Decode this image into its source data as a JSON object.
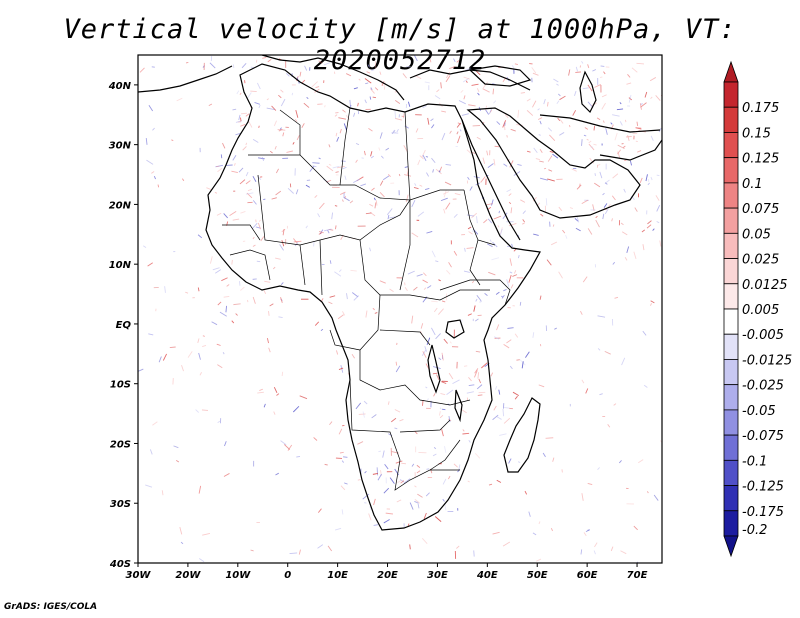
{
  "title": "Vertical velocity [m/s] at 1000hPa, VT: 2020052712",
  "credit": "GrADS: IGES/COLA",
  "map": {
    "lon_range": [
      -30,
      75
    ],
    "lat_range": [
      -40,
      45
    ],
    "lon_ticks": [
      {
        "value": -30,
        "label": "30W"
      },
      {
        "value": -20,
        "label": "20W"
      },
      {
        "value": -10,
        "label": "10W"
      },
      {
        "value": 0,
        "label": "0"
      },
      {
        "value": 10,
        "label": "10E"
      },
      {
        "value": 20,
        "label": "20E"
      },
      {
        "value": 30,
        "label": "30E"
      },
      {
        "value": 40,
        "label": "40E"
      },
      {
        "value": 50,
        "label": "50E"
      },
      {
        "value": 60,
        "label": "60E"
      },
      {
        "value": 70,
        "label": "70E"
      }
    ],
    "lat_ticks": [
      {
        "value": 40,
        "label": "40N"
      },
      {
        "value": 30,
        "label": "30N"
      },
      {
        "value": 20,
        "label": "20N"
      },
      {
        "value": 10,
        "label": "10N"
      },
      {
        "value": 0,
        "label": "EQ"
      },
      {
        "value": -10,
        "label": "10S"
      },
      {
        "value": -20,
        "label": "20S"
      },
      {
        "value": -30,
        "label": "30S"
      },
      {
        "value": -40,
        "label": "40S"
      }
    ]
  },
  "colorbar": {
    "levels": [
      {
        "label": "0.175",
        "color": "#c4262e"
      },
      {
        "label": "0.15",
        "color": "#d43a3a"
      },
      {
        "label": "0.125",
        "color": "#e05050"
      },
      {
        "label": "0.1",
        "color": "#e86868"
      },
      {
        "label": "0.075",
        "color": "#ee8484"
      },
      {
        "label": "0.05",
        "color": "#f3a0a0"
      },
      {
        "label": "0.025",
        "color": "#f8bcbc"
      },
      {
        "label": "0.0125",
        "color": "#fbd6d6"
      },
      {
        "label": "0.005",
        "color": "#fde9e9"
      },
      {
        "label": "-0.005",
        "color": "#ffffff"
      },
      {
        "label": "-0.0125",
        "color": "#e2e2f8"
      },
      {
        "label": "-0.025",
        "color": "#c8c8f2"
      },
      {
        "label": "-0.05",
        "color": "#aeaeec"
      },
      {
        "label": "-0.075",
        "color": "#9090e2"
      },
      {
        "label": "-0.1",
        "color": "#7070d6"
      },
      {
        "label": "-0.125",
        "color": "#5050c8"
      },
      {
        "label": "-0.175",
        "color": "#3030b4"
      },
      {
        "label": "-0.2",
        "color": "#1c1ca0"
      }
    ],
    "top_arrow_color": "#b01c24",
    "bottom_arrow_color": "#12128a"
  }
}
